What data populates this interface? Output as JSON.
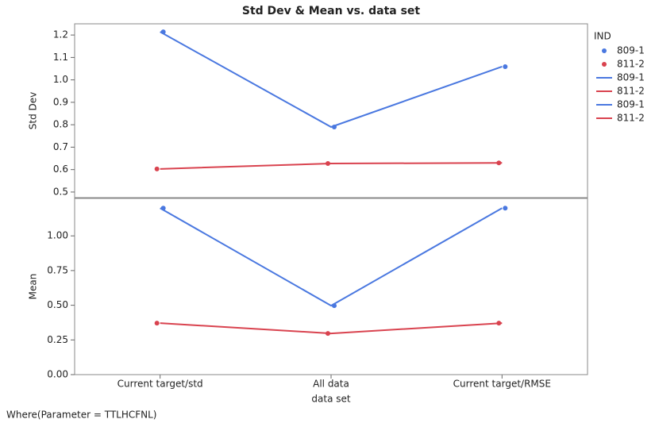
{
  "chart_data": {
    "type": "line",
    "title": "Std Dev & Mean vs. data set",
    "x_label": "data set",
    "categories": [
      "Current target/std",
      "All data",
      "Current target/RMSE"
    ],
    "panels": [
      {
        "y_label": "Std Dev",
        "ylim": [
          0.475,
          1.25
        ],
        "yticks": [
          0.5,
          0.6,
          0.7,
          0.8,
          0.9,
          {
            "value": 1.0,
            "label": "1.0"
          },
          1.1,
          1.2
        ],
        "series": [
          {
            "name": "809-1",
            "color": "#4a78e0",
            "values": [
              1.214,
              0.79,
              1.059
            ]
          },
          {
            "name": "811-2",
            "color": "#d9434f",
            "values": [
              0.603,
              0.627,
              0.63
            ]
          }
        ]
      },
      {
        "y_label": "Mean",
        "ylim": [
          0,
          1.27
        ],
        "yticks": [
          {
            "value": 0,
            "label": "0.00"
          },
          {
            "value": 0.25,
            "label": "0.25"
          },
          {
            "value": 0.5,
            "label": "0.50"
          },
          {
            "value": 0.75,
            "label": "0.75"
          },
          {
            "value": 1.0,
            "label": "1.00"
          }
        ],
        "series": [
          {
            "name": "809-1",
            "color": "#4a78e0",
            "values": [
              1.2,
              0.497,
              1.2
            ]
          },
          {
            "name": "811-2",
            "color": "#d9434f",
            "values": [
              0.371,
              0.297,
              0.371
            ]
          }
        ]
      }
    ],
    "legend": {
      "title": "IND",
      "entries": [
        {
          "name": "809-1",
          "kind": "point",
          "color": "#4a78e0"
        },
        {
          "name": "811-2",
          "kind": "point",
          "color": "#d9434f"
        },
        {
          "name": "809-1",
          "kind": "line",
          "color": "#4a78e0"
        },
        {
          "name": "811-2",
          "kind": "line",
          "color": "#d9434f"
        },
        {
          "name": "809-1",
          "kind": "line",
          "color": "#4a78e0"
        },
        {
          "name": "811-2",
          "kind": "line",
          "color": "#d9434f"
        }
      ]
    },
    "footnote": "Where(Parameter = TTLHCFNL)"
  }
}
